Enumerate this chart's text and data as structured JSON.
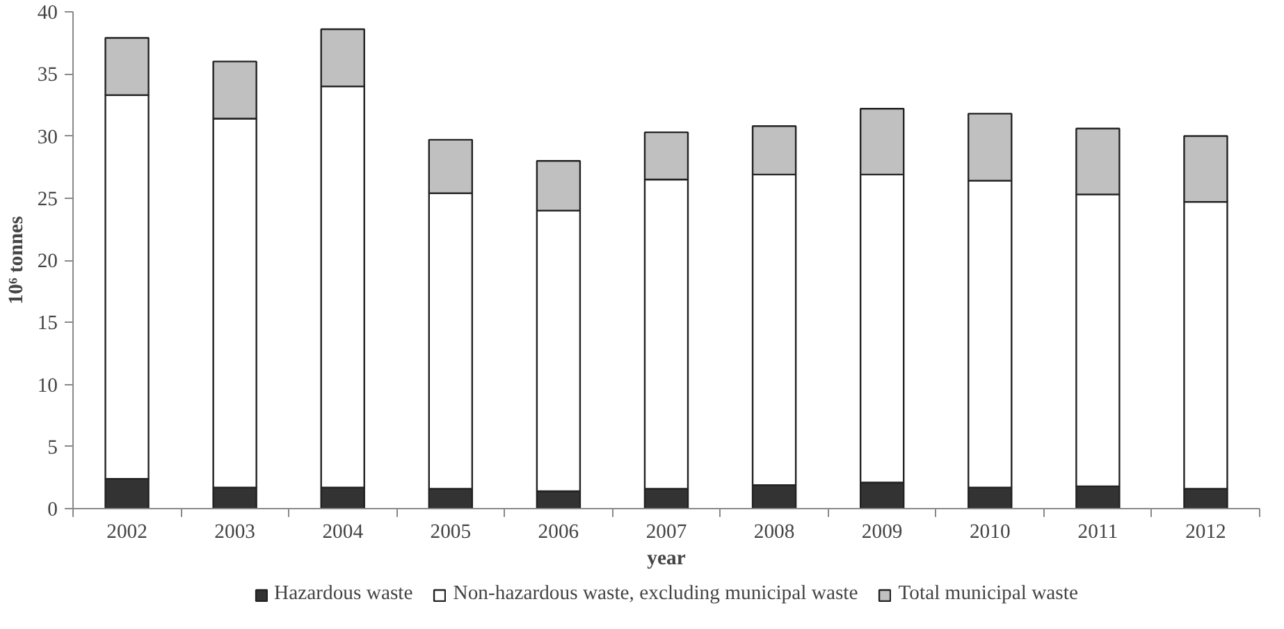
{
  "chart_data": {
    "type": "bar",
    "stacked": true,
    "categories": [
      "2002",
      "2003",
      "2004",
      "2005",
      "2006",
      "2007",
      "2008",
      "2009",
      "2010",
      "2011",
      "2012"
    ],
    "series": [
      {
        "name": "Hazardous waste",
        "color": "#333333",
        "values": [
          2.4,
          1.7,
          1.7,
          1.6,
          1.4,
          1.6,
          1.9,
          2.1,
          1.7,
          1.8,
          1.6
        ]
      },
      {
        "name": "Non-hazardous waste, excluding municipal waste",
        "color": "#ffffff",
        "values": [
          30.9,
          29.7,
          32.3,
          23.8,
          22.6,
          24.9,
          25.0,
          24.8,
          24.7,
          23.5,
          23.1
        ]
      },
      {
        "name": "Total municipal waste",
        "color": "#c0c0c0",
        "values": [
          4.6,
          4.6,
          4.6,
          4.3,
          4.0,
          3.8,
          3.9,
          5.3,
          5.4,
          5.3,
          5.3
        ]
      }
    ],
    "xlabel": "year",
    "ylabel": "10⁶ tonnes",
    "ylim": [
      0,
      40
    ],
    "yticks": [
      0,
      5,
      10,
      15,
      20,
      25,
      30,
      35,
      40
    ],
    "grid": false,
    "legend": "bottom"
  }
}
